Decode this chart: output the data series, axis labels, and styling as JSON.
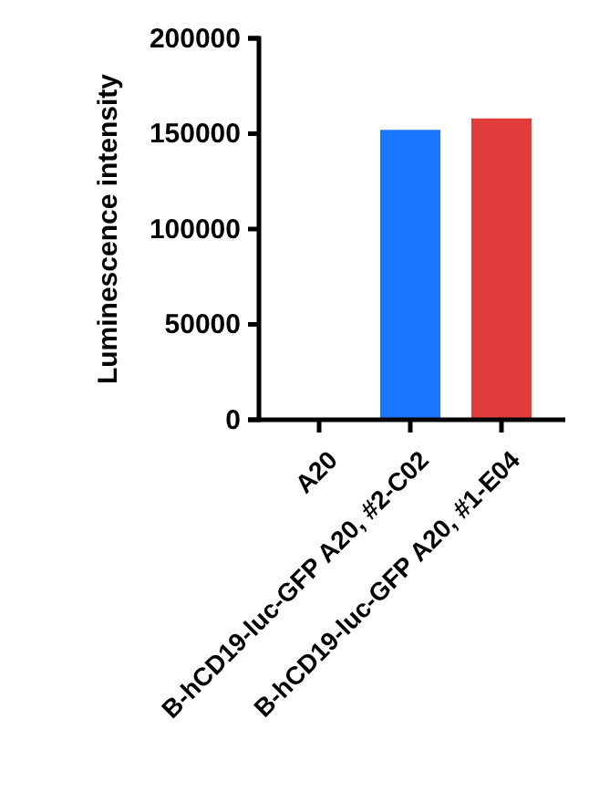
{
  "chart_data": {
    "type": "bar",
    "ylabel": "Luminescence intensity",
    "categories": [
      "A20",
      "B-hCD19-luc-GFP A20, #2-C02",
      "B-hCD19-luc-GFP A20, #1-E04"
    ],
    "values": [
      0,
      152000,
      158000
    ],
    "colors": [
      "#1a75ff",
      "#1a75ff",
      "#e03c3c"
    ],
    "ylim": [
      0,
      200000
    ],
    "yticks": [
      0,
      50000,
      100000,
      150000,
      200000
    ],
    "grid": false
  }
}
